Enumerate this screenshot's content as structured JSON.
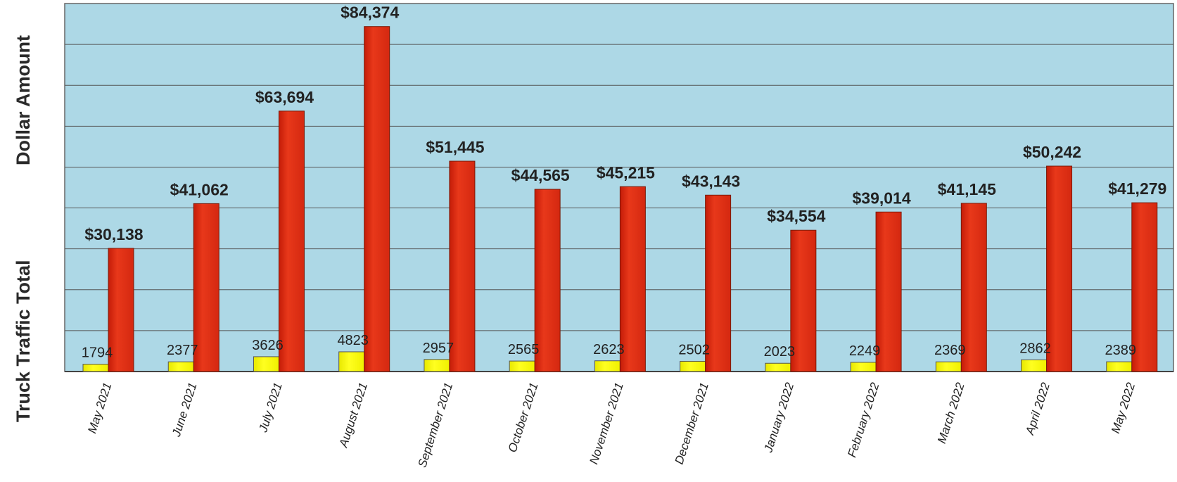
{
  "chart_data": {
    "type": "bar",
    "title": "",
    "ylabel_top": "Dollar Amount",
    "ylabel_bottom": "Truck Traffic Total",
    "categories": [
      "May 2021",
      "June 2021",
      "July 2021",
      "August 2021",
      "September 2021",
      "October 2021",
      "November 2021",
      "December 2021",
      "January 2022",
      "February 2022",
      "March 2022",
      "April 2022",
      "May 2022"
    ],
    "series": [
      {
        "name": "",
        "color": "#ffff00",
        "values": [
          1794,
          2377,
          3626,
          4823,
          2957,
          2565,
          2623,
          2502,
          2023,
          2249,
          2369,
          2862,
          2389
        ],
        "labels": [
          "1794",
          "2377",
          "3626",
          "4823",
          "2957",
          "2565",
          "2623",
          "2502",
          "2023",
          "2249",
          "2369",
          "2862",
          "2389"
        ]
      },
      {
        "name": "",
        "color": "#e03010",
        "values": [
          30138,
          41062,
          63694,
          84374,
          51445,
          44565,
          45215,
          43143,
          34554,
          39014,
          41145,
          50242,
          41279
        ],
        "labels": [
          "$30,138",
          "$41,062",
          "$63,694",
          "$84,374",
          "$51,445",
          "$44,565",
          "$45,215",
          "$43,143",
          "$34,554",
          "$39,014",
          "$41,145",
          "$50,242",
          "$41,279"
        ]
      }
    ],
    "ylim": [
      0,
      90000
    ],
    "grid": true,
    "legend": "none",
    "plot_background": "#add8e6"
  }
}
